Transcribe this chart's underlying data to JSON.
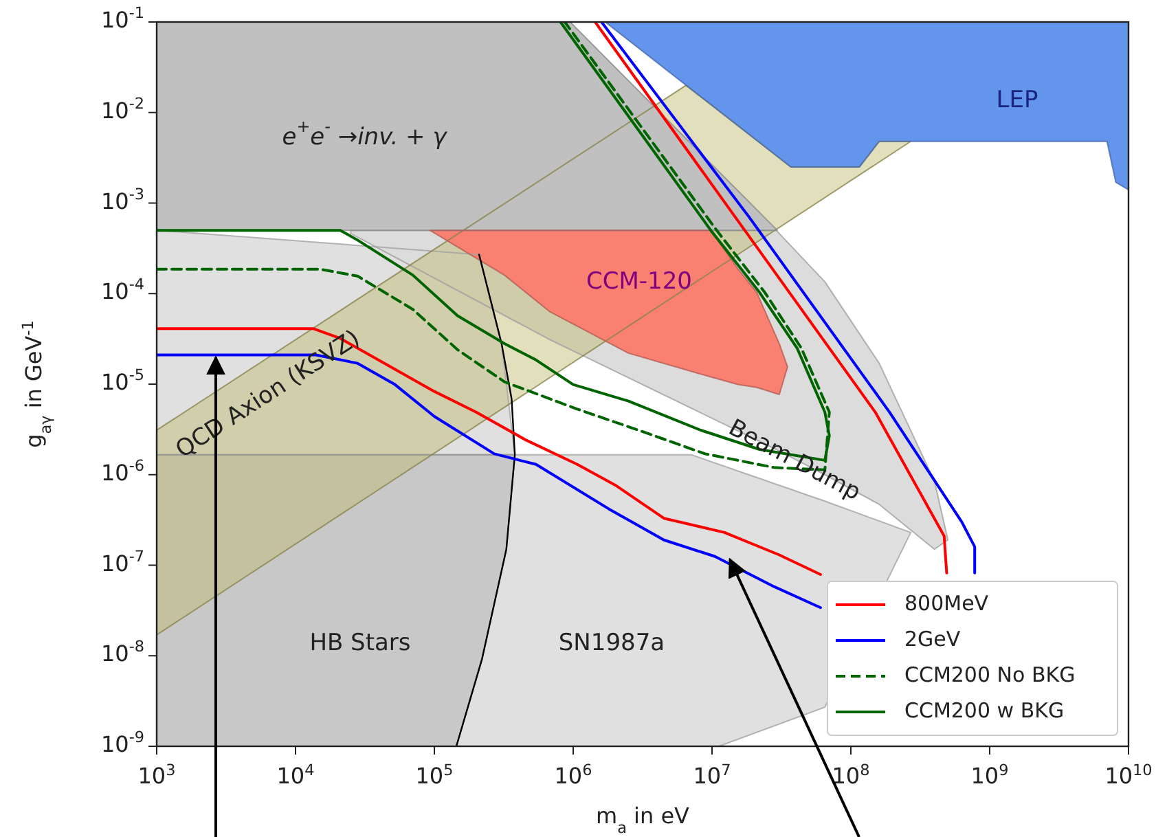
{
  "chart_data": {
    "type": "line",
    "xlabel": "m$_{a}$ in eV",
    "ylabel": "g$_{aγ}$ in GeV$^{-1}$",
    "log": "xy",
    "grid": false,
    "legend": "lower right",
    "marker": "none",
    "xlim": [
      1000,
      10000000000
    ],
    "ylim": [
      1e-09,
      0.1
    ],
    "xticks": [
      {
        "value": 1000,
        "label": "10$^{3}$"
      },
      {
        "value": 10000,
        "label": "10$^{4}$"
      },
      {
        "value": 100000,
        "label": "10$^{5}$"
      },
      {
        "value": 1000000,
        "label": "10$^{6}$"
      },
      {
        "value": 10000000,
        "label": "10$^{7}$"
      },
      {
        "value": 100000000,
        "label": "10$^{8}$"
      },
      {
        "value": 1000000000,
        "label": "10$^{9}$"
      },
      {
        "value": 10000000000,
        "label": "10$^{10}$"
      }
    ],
    "yticks": [
      {
        "value": 1e-09,
        "label": "10$^{-9}$"
      },
      {
        "value": 1e-08,
        "label": "10$^{-8}$"
      },
      {
        "value": 1e-07,
        "label": "10$^{-7}$"
      },
      {
        "value": 1e-06,
        "label": "10$^{-6}$"
      },
      {
        "value": 1e-05,
        "label": "10$^{-5}$"
      },
      {
        "value": 0.0001,
        "label": "10$^{-4}$"
      },
      {
        "value": 0.001,
        "label": "10$^{-3}$"
      },
      {
        "value": 0.01,
        "label": "10$^{-2}$"
      },
      {
        "value": 0.1,
        "label": "10$^{-1}$"
      }
    ],
    "series": [
      {
        "type": "area",
        "color": "#e0e0e0",
        "x": [
          1000,
          210000,
          305000,
          380000,
          1000
        ],
        "values": [
          0.0005,
          0.00027,
          2.8e-05,
          1.66e-06,
          1.66e-06
        ]
      },
      {
        "type": "area",
        "color": "#e0e0e0",
        "x": [
          380000,
          7100000,
          11200000,
          65000000,
          270000000,
          65000000,
          11200000,
          144000,
          220000,
          330000
        ],
        "values": [
          1.66e-06,
          1.66e-06,
          1.3e-06,
          5.1e-07,
          2.3e-07,
          2.7e-09,
          1e-09,
          1e-09,
          9.1e-09,
          1.5e-07
        ]
      },
      {
        "type": "area",
        "color": "#dcdcdc",
        "x": [
          25000,
          29000000,
          65000000,
          160000000,
          400000000,
          500000000,
          400000000,
          160000000,
          65000000,
          29000000,
          680000,
          25000
        ],
        "values": [
          0.0005,
          0.0005,
          0.000135,
          1.7e-05,
          8.5e-07,
          1.9e-07,
          1.5e-07,
          4.7e-07,
          1e-06,
          1.9e-06,
          3.1e-05,
          0.00046
        ]
      },
      {
        "type": "area",
        "color": "#c8c8c8",
        "x": [
          1000,
          380000,
          330000,
          220000,
          144000,
          1000
        ],
        "values": [
          1.66e-06,
          1.66e-06,
          1.5e-07,
          9.1e-09,
          1e-09,
          1e-09
        ]
      },
      {
        "type": "area",
        "color": "#bdb76b",
        "x": [
          1000,
          6500000,
          37000000,
          115000000,
          160000000,
          270000000,
          1000
        ],
        "values": [
          3.1e-06,
          0.02,
          0.0025,
          0.0025,
          0.0048,
          0.0048,
          1.7e-08
        ]
      },
      {
        "type": "area",
        "color": "#c0c0c0",
        "x": [
          1000,
          950000,
          29500000,
          1000
        ],
        "values": [
          0.1,
          0.1,
          0.0005,
          0.0005
        ]
      },
      {
        "type": "area",
        "color": "#fa8072",
        "x": [
          93000,
          9800000,
          15400000,
          21000000,
          30500000,
          35000000,
          30500000,
          21000000,
          15400000,
          9800000,
          2500000,
          680000,
          320000
        ],
        "values": [
          0.0005,
          0.0005,
          0.000186,
          0.000103,
          2.8e-05,
          1.55e-05,
          7.7e-06,
          9.2e-06,
          9.9e-06,
          1.2e-05,
          2.2e-05,
          6.3e-05,
          0.00016
        ]
      },
      {
        "type": "area",
        "color": "#6495ed",
        "x": [
          1700000,
          10000000000,
          10000000000,
          8100000000,
          7000000000,
          160000000,
          115000000,
          37000000
        ],
        "values": [
          0.1,
          0.1,
          0.0014,
          0.0017,
          0.0048,
          0.0048,
          0.0025,
          0.0025
        ]
      },
      {
        "color": "#000000",
        "x": [
          144000,
          220000,
          330000,
          380000,
          360000,
          305000,
          210000
        ],
        "values": [
          1e-09,
          9.1e-09,
          1.5e-07,
          1.66e-06,
          6.9e-06,
          2.8e-05,
          0.00027
        ]
      },
      {
        "name": "800MeV",
        "color": "#ff0000",
        "line_style": "solid",
        "x": [
          1000,
          13500,
          21000,
          100000,
          200000,
          460000,
          1070000,
          2000000,
          4500000,
          12300000,
          30500000,
          60500000,
          null,
          490000000,
          470000000,
          150000000,
          14700000,
          1440000
        ],
        "values": [
          4.1e-05,
          4.1e-05,
          3.2e-05,
          8.3e-06,
          4.9e-06,
          2.4e-06,
          1.3e-06,
          7.7e-07,
          3.3e-07,
          2.3e-07,
          1.3e-07,
          7.9e-08,
          null,
          8.2e-08,
          2.1e-07,
          4.9e-06,
          0.0007,
          0.1
        ]
      },
      {
        "name": "2GeV",
        "color": "#0000ff",
        "line_style": "solid",
        "x": [
          1000,
          14000,
          28000,
          52000,
          100000,
          270000,
          540000,
          1800000,
          4500000,
          10500000,
          28000000,
          60500000,
          null,
          780000000,
          780000000,
          630000000,
          190000000,
          18500000,
          1600000
        ],
        "values": [
          2.1e-05,
          2.1e-05,
          1.7e-05,
          9.9e-06,
          4.4e-06,
          1.7e-06,
          1.3e-06,
          4.2e-07,
          1.9e-07,
          1.25e-07,
          5.8e-08,
          3.4e-08,
          null,
          8.2e-08,
          1.6e-07,
          3e-07,
          4.9e-06,
          0.0007,
          0.1
        ]
      },
      {
        "name": "CCM200 No BKG",
        "color": "#006400",
        "line_style": "dashed",
        "x": [
          1000,
          15000,
          28000,
          70000,
          147000,
          320000,
          1070000,
          3350000,
          8900000,
          28000000,
          65000000,
          70000000,
          44000000,
          24000000,
          10700000,
          870000
        ],
        "values": [
          0.000186,
          0.000186,
          0.000156,
          6.7e-05,
          2.4e-05,
          1.06e-05,
          5.3e-06,
          2.9e-06,
          1.7e-06,
          1.2e-06,
          1.13e-06,
          4.9e-06,
          2.5e-05,
          0.000103,
          0.00051,
          0.1
        ]
      },
      {
        "name": "CCM200 w BKG",
        "color": "#006400",
        "line_style": "solid",
        "x": [
          1000,
          21000,
          28000,
          70000,
          147000,
          320000,
          540000,
          1000000,
          2500000,
          8300000,
          22000000,
          65000000,
          70000000,
          65000000,
          41000000,
          22000000,
          9800000,
          810000
        ],
        "values": [
          0.0005,
          0.0005,
          0.00039,
          0.00016,
          5.7e-05,
          2.8e-05,
          1.85e-05,
          9.9e-06,
          6.5e-06,
          3.1e-06,
          1.9e-06,
          1.44e-06,
          2.7e-06,
          4.9e-06,
          2.5e-05,
          0.000103,
          0.0005,
          0.1
        ]
      }
    ],
    "annotations": [
      "e$^{+}$e$^{-}$ →inv. + γ",
      "LEP",
      "CCM-120",
      "QCD Axion (KSVZ)",
      "Beam Dump",
      "HB Stars",
      "SN1987a"
    ]
  }
}
